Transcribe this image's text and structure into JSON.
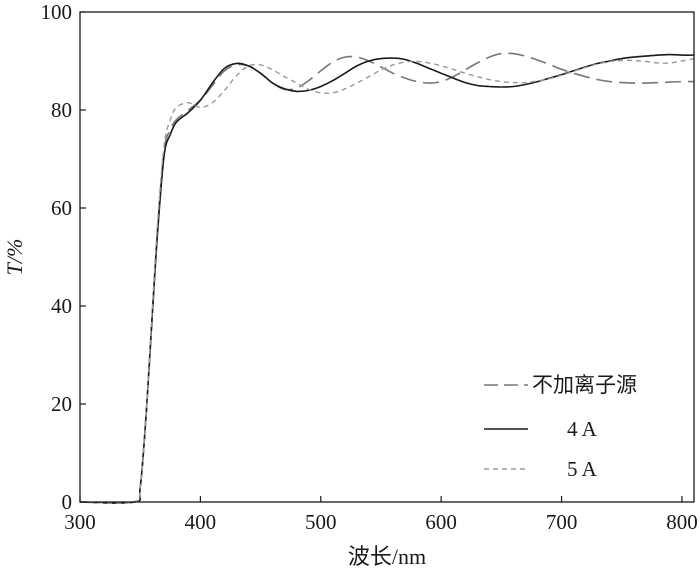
{
  "chart_data": {
    "type": "line",
    "title": "",
    "xlabel": "波长/nm",
    "ylabel": "T/%",
    "xlim": [
      300,
      810
    ],
    "ylim": [
      0,
      100
    ],
    "xticks": [
      300,
      400,
      500,
      600,
      700,
      800
    ],
    "yticks": [
      0,
      20,
      40,
      60,
      80,
      100
    ],
    "grid": false,
    "legend_position": "bottom-right",
    "series": [
      {
        "name": "不加离子源",
        "style": "long-dash",
        "color": "#777777",
        "x": [
          300,
          345,
          350,
          355,
          360,
          365,
          370,
          375,
          380,
          390,
          400,
          410,
          420,
          430,
          440,
          450,
          460,
          470,
          480,
          490,
          500,
          510,
          520,
          530,
          540,
          550,
          560,
          570,
          580,
          590,
          600,
          610,
          620,
          630,
          640,
          650,
          660,
          670,
          680,
          690,
          700,
          710,
          720,
          730,
          740,
          750,
          760,
          770,
          780,
          790,
          800,
          810
        ],
        "y": [
          0,
          0,
          3,
          18,
          38,
          58,
          72,
          76,
          78,
          80,
          82,
          85,
          88,
          89.2,
          89,
          87.5,
          85.5,
          84.2,
          84.5,
          86,
          88,
          89.8,
          90.8,
          90.8,
          90,
          88.8,
          87.5,
          86.5,
          85.8,
          85.5,
          85.8,
          86.8,
          88.2,
          89.6,
          90.8,
          91.5,
          91.5,
          91,
          90.2,
          89.3,
          88.3,
          87.5,
          86.8,
          86.2,
          85.8,
          85.6,
          85.5,
          85.5,
          85.6,
          85.7,
          85.8,
          85.8
        ]
      },
      {
        "name": "4 A",
        "style": "solid",
        "color": "#1a1a1a",
        "x": [
          300,
          345,
          350,
          355,
          360,
          365,
          370,
          375,
          380,
          390,
          400,
          410,
          420,
          430,
          440,
          450,
          460,
          470,
          480,
          490,
          500,
          510,
          520,
          530,
          540,
          550,
          560,
          570,
          580,
          590,
          600,
          610,
          620,
          630,
          640,
          650,
          660,
          670,
          680,
          690,
          700,
          710,
          720,
          730,
          740,
          750,
          760,
          770,
          780,
          790,
          800,
          810
        ],
        "y": [
          0,
          0,
          3,
          18,
          38,
          57,
          71,
          75,
          77.5,
          79.5,
          82,
          85.5,
          88.5,
          89.5,
          89,
          87.5,
          85.5,
          84.3,
          83.8,
          84,
          84.8,
          86,
          87.5,
          89,
          90,
          90.5,
          90.6,
          90.3,
          89.5,
          88.5,
          87.5,
          86.5,
          85.6,
          85,
          84.8,
          84.7,
          84.8,
          85.2,
          85.8,
          86.5,
          87.2,
          88,
          88.8,
          89.5,
          90,
          90.5,
          90.8,
          91,
          91.2,
          91.3,
          91.2,
          91.2
        ]
      },
      {
        "name": "5 A",
        "style": "short-dash",
        "color": "#999999",
        "x": [
          300,
          345,
          350,
          355,
          360,
          365,
          370,
          375,
          380,
          390,
          400,
          410,
          420,
          430,
          440,
          450,
          460,
          470,
          480,
          490,
          500,
          510,
          520,
          530,
          540,
          550,
          560,
          570,
          580,
          590,
          600,
          610,
          620,
          630,
          640,
          650,
          660,
          670,
          680,
          690,
          700,
          710,
          720,
          730,
          740,
          750,
          760,
          770,
          780,
          790,
          800,
          810
        ],
        "y": [
          0,
          0,
          3,
          18,
          39,
          59,
          73,
          78,
          80.5,
          81.5,
          80.5,
          81.5,
          84,
          87,
          89,
          89.2,
          88.2,
          86.8,
          85.5,
          84.2,
          83.5,
          83.5,
          84.3,
          85.5,
          86.8,
          88.2,
          89.2,
          89.8,
          89.9,
          89.6,
          89,
          88.3,
          87.5,
          86.8,
          86.2,
          85.8,
          85.6,
          85.6,
          85.9,
          86.4,
          87.1,
          87.9,
          88.7,
          89.4,
          89.9,
          90.1,
          90.1,
          89.9,
          89.6,
          89.6,
          90,
          90.5
        ]
      }
    ]
  }
}
